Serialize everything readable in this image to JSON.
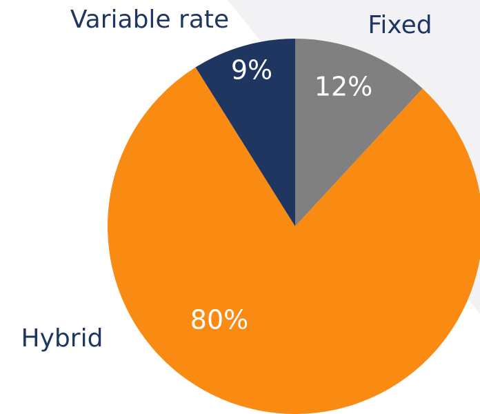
{
  "chart_data": {
    "type": "pie",
    "categories": [
      "Fixed",
      "Hybrid",
      "Variable rate"
    ],
    "values": [
      12,
      80,
      9
    ],
    "value_labels": [
      "12%",
      "80%",
      "9%"
    ],
    "colors": [
      "#808080",
      "#f98a12",
      "#1f3660"
    ]
  }
}
